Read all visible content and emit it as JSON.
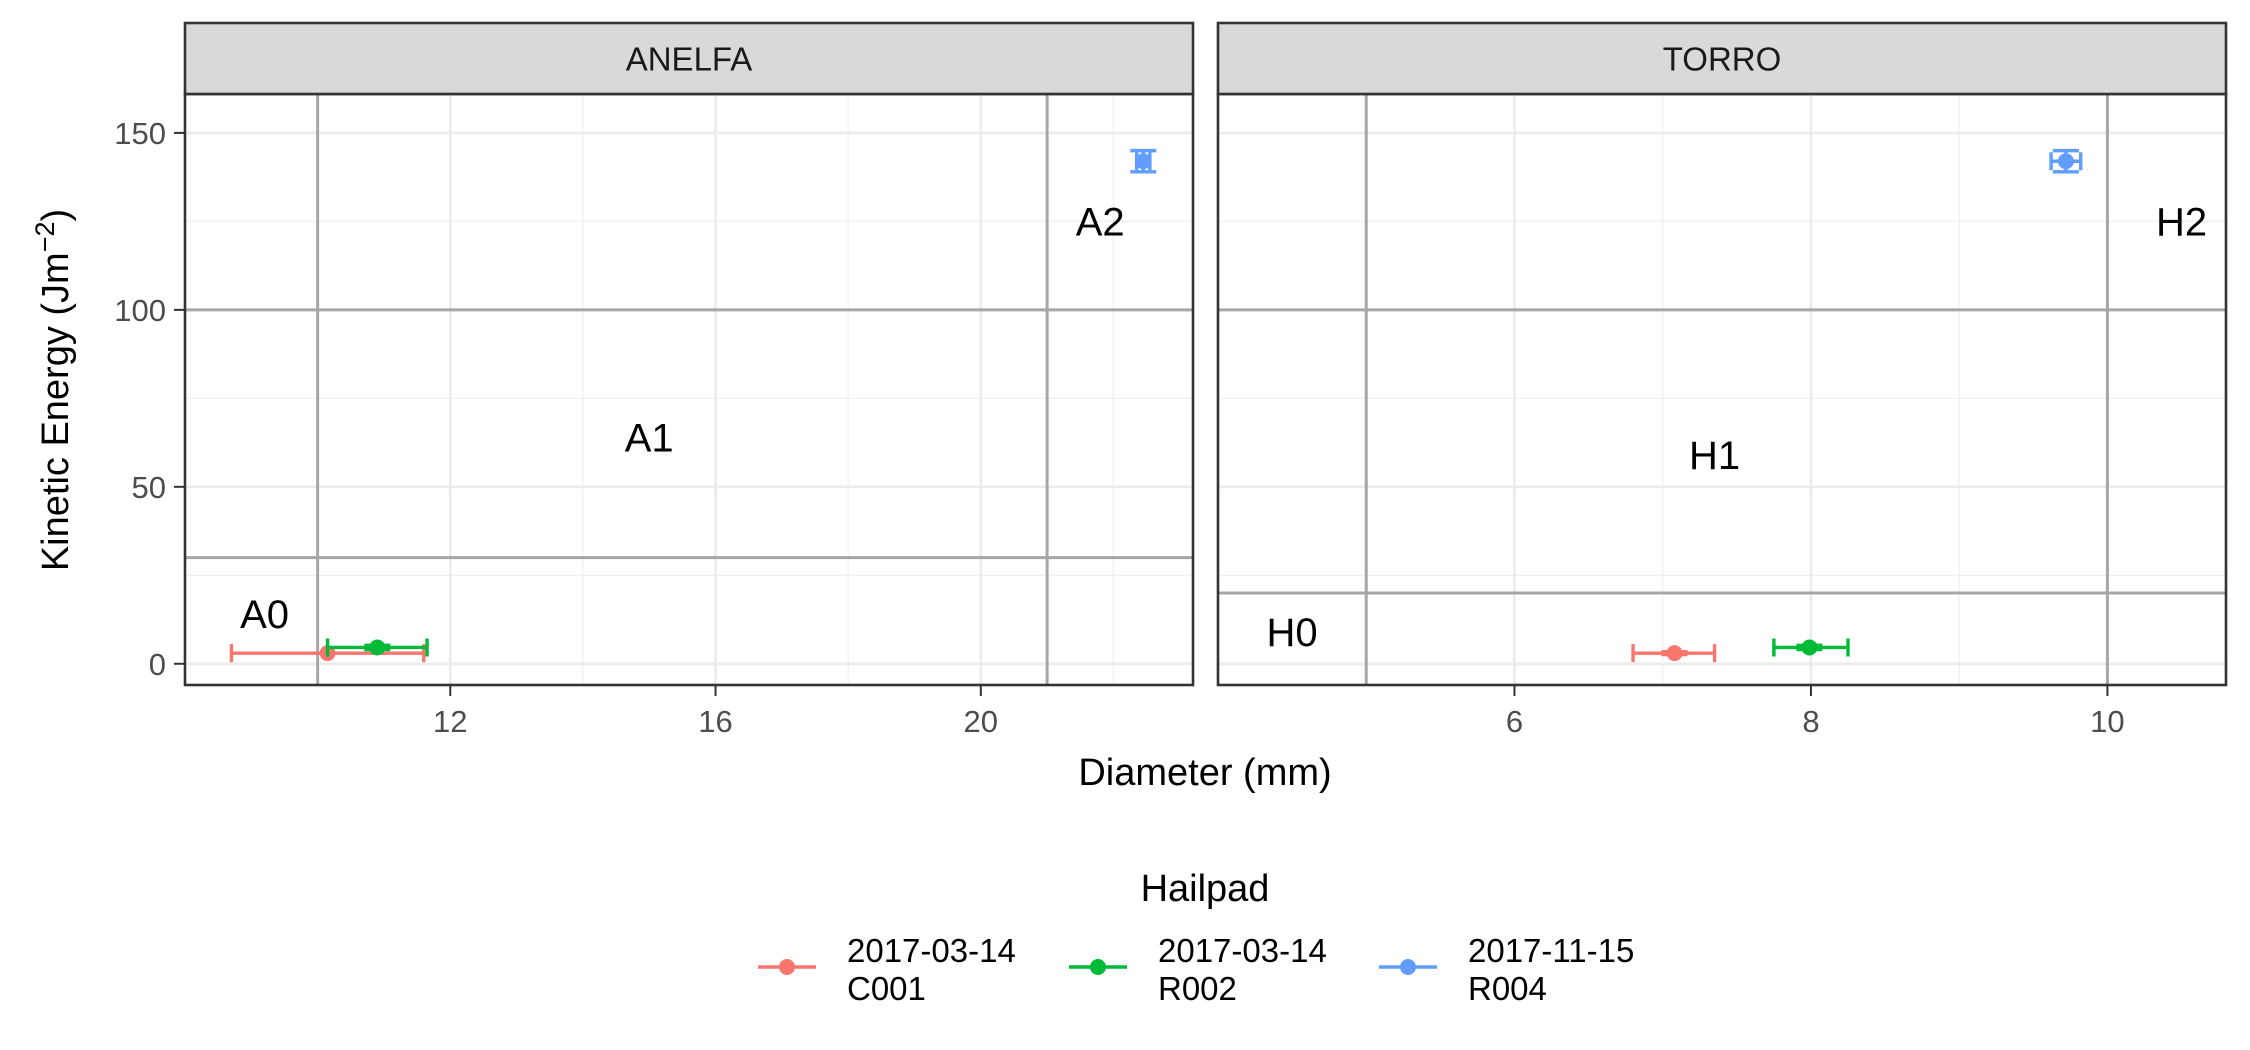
{
  "chart_data": {
    "type": "scatter",
    "subtype": "faceted scatter with horizontal and vertical error bars",
    "x_axis_label": "Diameter (mm)",
    "y_axis_label_main": "Kinetic Energy (Jm",
    "y_axis_label_sup": "−2",
    "y_axis_label_end": ")",
    "y_range": [
      -6,
      161
    ],
    "y_ticks": [
      0,
      50,
      100,
      150
    ],
    "grid": true,
    "legend": {
      "title": "Hailpad",
      "position": "bottom",
      "entries": [
        {
          "line1": "2017-03-14",
          "line2": "C001",
          "color": "#F8766D"
        },
        {
          "line1": "2017-03-14",
          "line2": "R002",
          "color": "#00BA38"
        },
        {
          "line1": "2017-11-15",
          "line2": "R004",
          "color": "#619CFF"
        }
      ]
    },
    "facets": [
      {
        "name": "ANELFA",
        "x_range": [
          8.0,
          23.2
        ],
        "x_ticks": [
          12,
          16,
          20
        ],
        "x_minor": [
          10,
          14,
          18,
          22
        ],
        "class_vlines": [
          10,
          21
        ],
        "class_hlines": [
          30,
          100
        ],
        "class_labels": [
          {
            "text": "A0",
            "x": 9.2,
            "y": 14
          },
          {
            "text": "A1",
            "x": 15.0,
            "y": 64
          },
          {
            "text": "A2",
            "x": 21.8,
            "y": 125
          }
        ],
        "points": [
          {
            "series": "2017-03-14 C001",
            "x": 10.15,
            "y": 3.0,
            "xmin": 8.7,
            "xmax": 11.6,
            "ymin": 3.0,
            "ymax": 3.0
          },
          {
            "series": "2017-03-14 R002",
            "x": 10.9,
            "y": 4.6,
            "xmin": 10.15,
            "xmax": 11.65,
            "ymin": 4.0,
            "ymax": 5.2
          },
          {
            "series": "2017-11-15 R004",
            "x": 22.45,
            "y": 142,
            "xmin": 22.35,
            "xmax": 22.55,
            "ymin": 139,
            "ymax": 145
          }
        ]
      },
      {
        "name": "TORRO",
        "x_range": [
          4.0,
          10.8
        ],
        "x_ticks": [
          6,
          8,
          10
        ],
        "x_minor": [
          5,
          7,
          9
        ],
        "class_vlines": [
          5,
          10
        ],
        "class_hlines": [
          20,
          100
        ],
        "class_labels": [
          {
            "text": "H0",
            "x": 4.5,
            "y": 9
          },
          {
            "text": "H1",
            "x": 7.35,
            "y": 59
          },
          {
            "text": "H2",
            "x": 10.5,
            "y": 125
          }
        ],
        "points": [
          {
            "series": "2017-03-14 C001",
            "x": 7.08,
            "y": 3.0,
            "xmin": 6.8,
            "xmax": 7.35,
            "ymin": 2.6,
            "ymax": 3.4
          },
          {
            "series": "2017-03-14 R002",
            "x": 7.99,
            "y": 4.6,
            "xmin": 7.75,
            "xmax": 8.25,
            "ymin": 4.0,
            "ymax": 5.2
          },
          {
            "series": "2017-11-15 R004",
            "x": 9.72,
            "y": 142,
            "xmin": 9.62,
            "xmax": 9.82,
            "ymin": 139,
            "ymax": 145
          }
        ]
      }
    ]
  }
}
